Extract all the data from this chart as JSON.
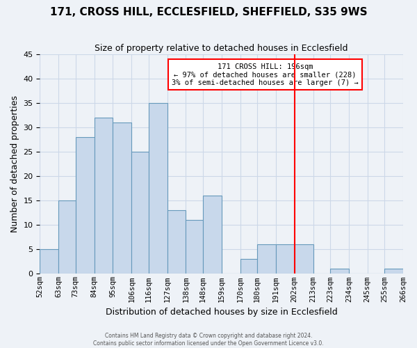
{
  "title": "171, CROSS HILL, ECCLESFIELD, SHEFFIELD, S35 9WS",
  "subtitle": "Size of property relative to detached houses in Ecclesfield",
  "xlabel": "Distribution of detached houses by size in Ecclesfield",
  "ylabel": "Number of detached properties",
  "bar_color": "#c8d8eb",
  "bar_edge_color": "#6699bb",
  "grid_color": "#ccd8e8",
  "background_color": "#eef2f7",
  "bin_labels": [
    "52sqm",
    "63sqm",
    "73sqm",
    "84sqm",
    "95sqm",
    "106sqm",
    "116sqm",
    "127sqm",
    "138sqm",
    "148sqm",
    "159sqm",
    "170sqm",
    "180sqm",
    "191sqm",
    "202sqm",
    "213sqm",
    "223sqm",
    "234sqm",
    "245sqm",
    "255sqm",
    "266sqm"
  ],
  "bin_edges": [
    52,
    63,
    73,
    84,
    95,
    106,
    116,
    127,
    138,
    148,
    159,
    170,
    180,
    191,
    202,
    213,
    223,
    234,
    245,
    255,
    266
  ],
  "bar_heights": [
    5,
    15,
    28,
    32,
    31,
    25,
    35,
    13,
    11,
    16,
    0,
    3,
    6,
    6,
    6,
    0,
    1,
    0,
    0,
    1,
    0
  ],
  "ylim": [
    0,
    45
  ],
  "yticks": [
    0,
    5,
    10,
    15,
    20,
    25,
    30,
    35,
    40,
    45
  ],
  "ref_line_x": 202,
  "annotation_title": "171 CROSS HILL: 196sqm",
  "annotation_line1": "← 97% of detached houses are smaller (228)",
  "annotation_line2": "3% of semi-detached houses are larger (7) →",
  "footnote1": "Contains HM Land Registry data © Crown copyright and database right 2024.",
  "footnote2": "Contains public sector information licensed under the Open Government Licence v3.0."
}
